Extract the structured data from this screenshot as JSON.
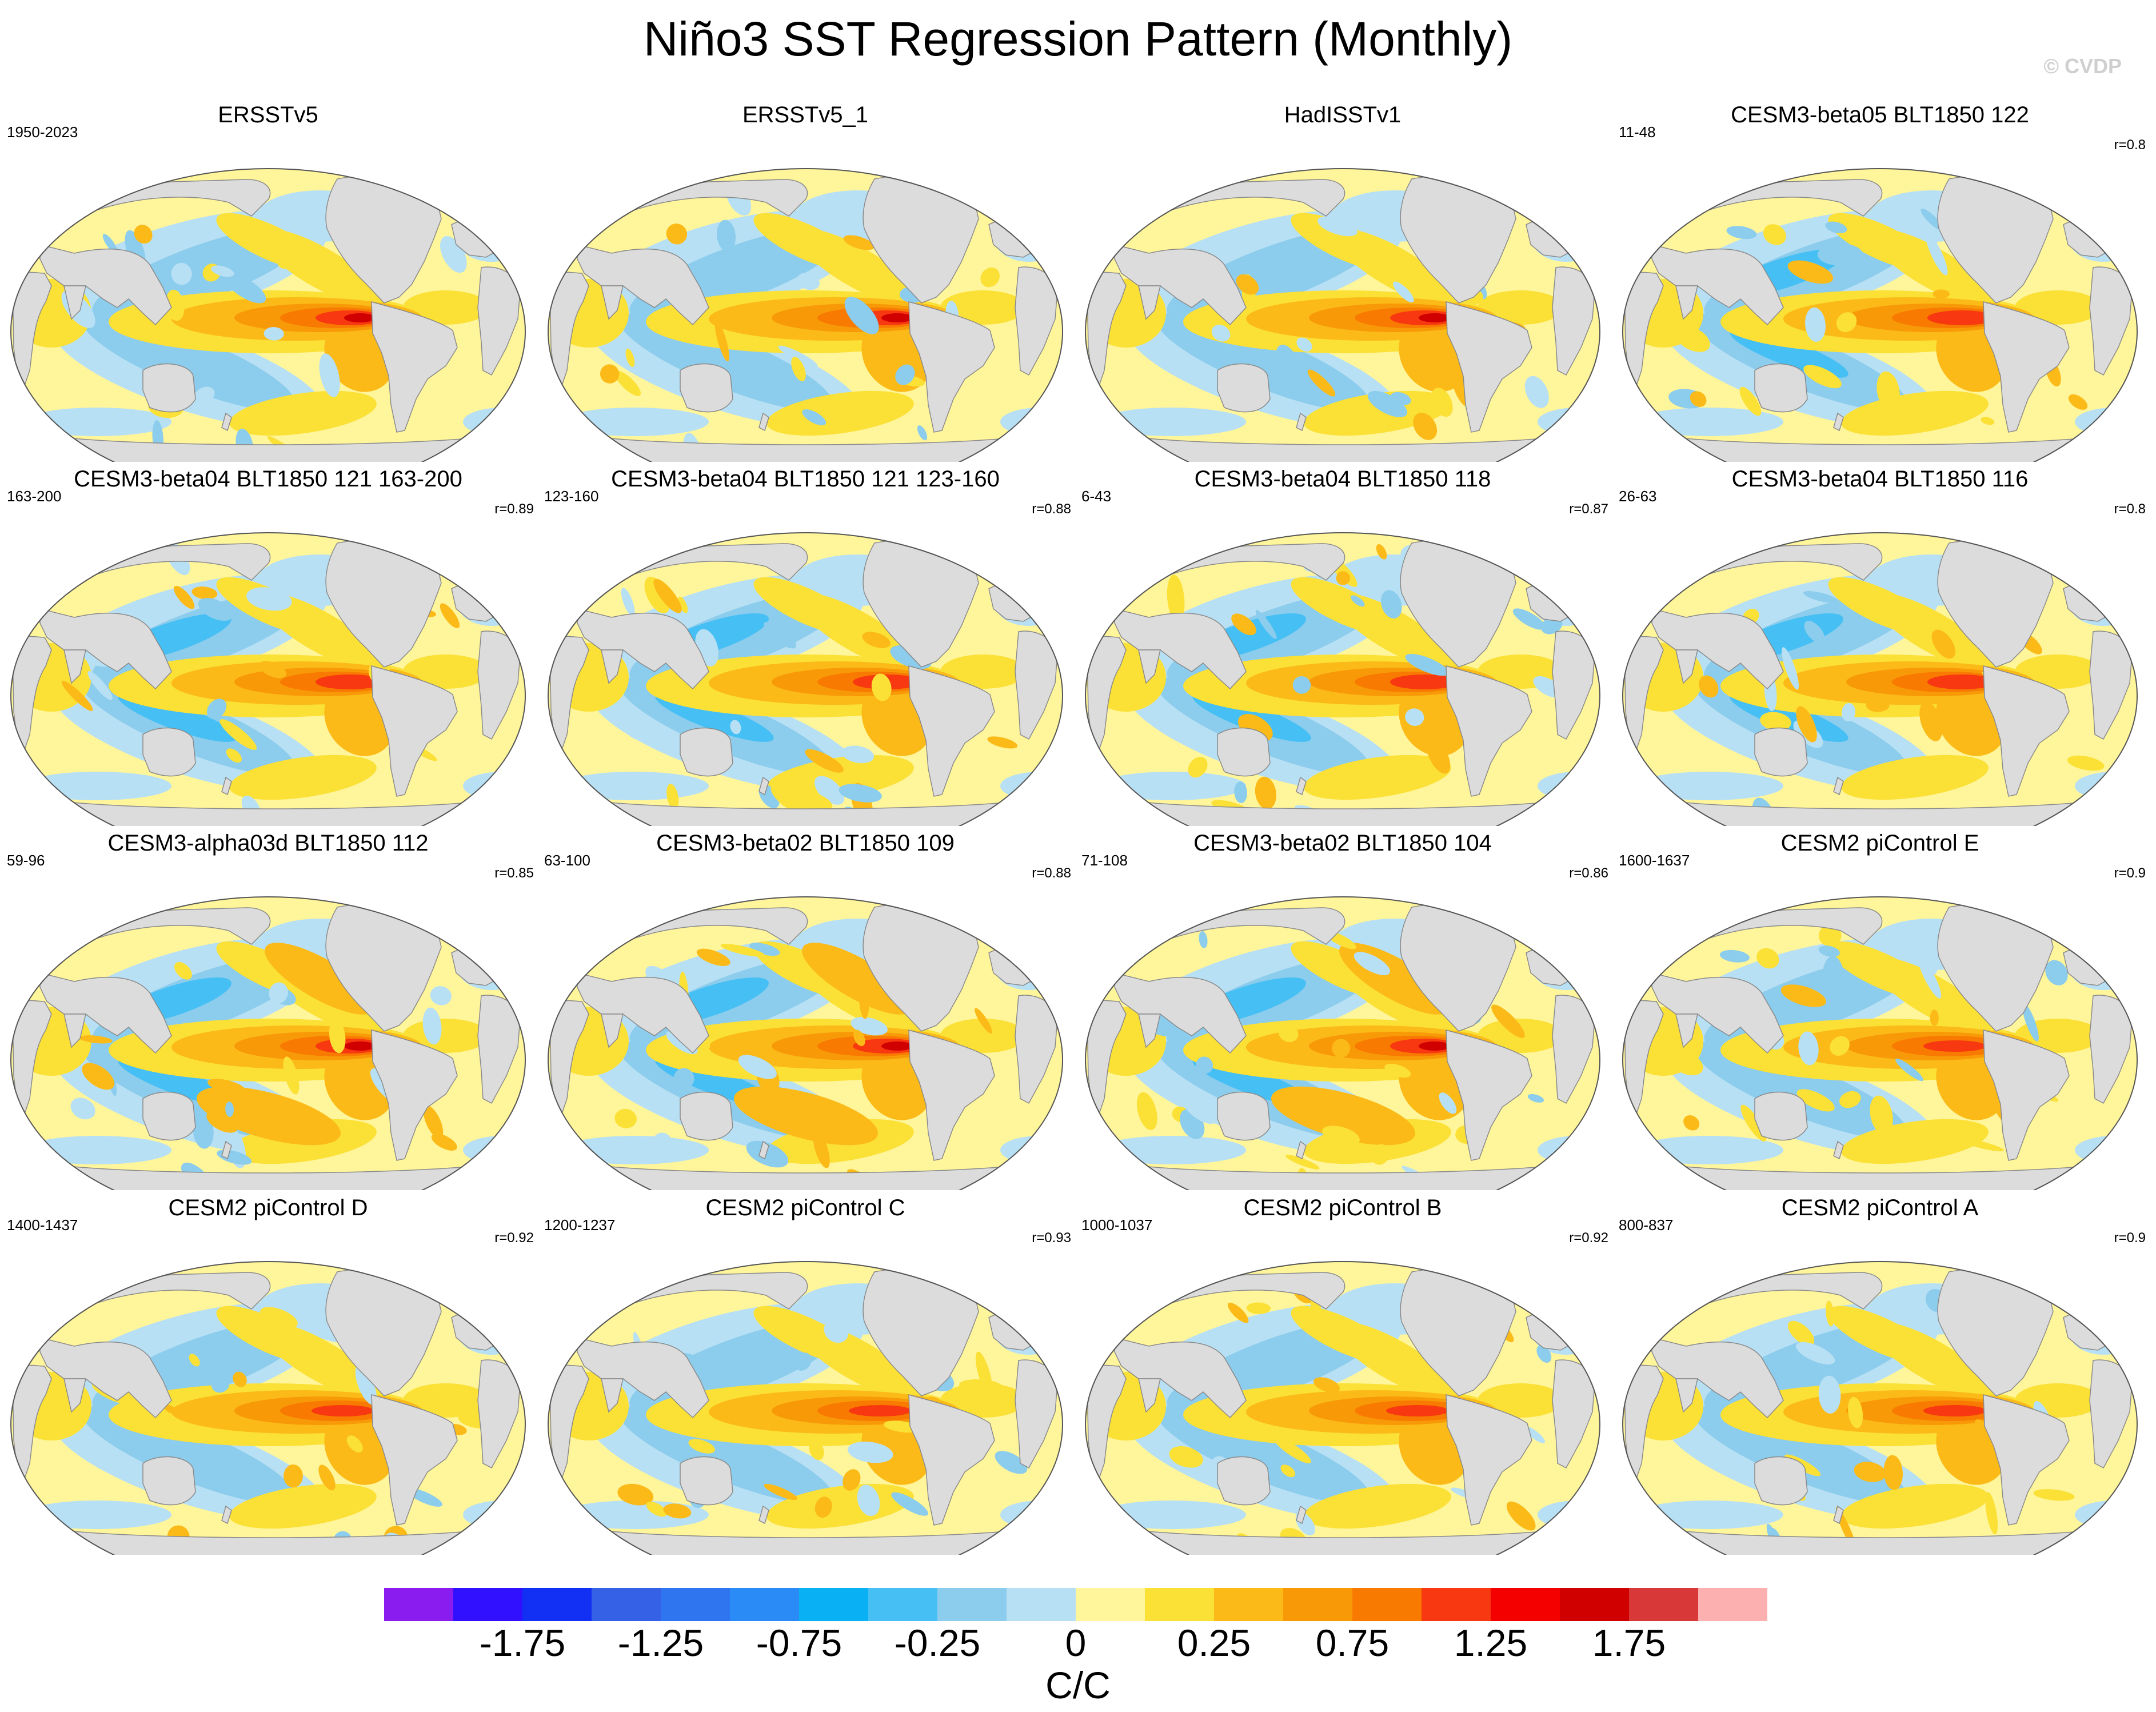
{
  "title": "Niño3 SST Regression Pattern (Monthly)",
  "watermark": "© CVDP",
  "colors": {
    "land": "#dcdcdc",
    "coast": "#8a8a8a",
    "contour_levels": [
      "#8a1cf0",
      "#3010ff",
      "#1230f4",
      "#3561e6",
      "#2f75f0",
      "#2a8bf6",
      "#0ab0f4",
      "#46c0f4",
      "#8cccec",
      "#b8e0f4",
      "#fff59a",
      "#fbe036",
      "#fbba18",
      "#f89a08",
      "#f87a00",
      "#f83810",
      "#f40000",
      "#d00000",
      "#d83838",
      "#fcb0b0"
    ]
  },
  "colorbar": {
    "labels": [
      "-1.75",
      "-1.25",
      "-0.75",
      "-0.25",
      "0",
      "0.25",
      "0.75",
      "1.25",
      "1.75"
    ],
    "units": "C/C"
  },
  "panels": [
    {
      "title": "ERSSTv5",
      "years": "1950-2023",
      "corr": "",
      "pattern": "obs"
    },
    {
      "title": "ERSSTv5_1",
      "years": "",
      "corr": "",
      "pattern": "obs"
    },
    {
      "title": "HadISSTv1",
      "years": "",
      "corr": "",
      "pattern": "obs"
    },
    {
      "title": "CESM3-beta05 BLT1850 122",
      "years": "11-48",
      "corr": "r=0.8",
      "pattern": "beta"
    },
    {
      "title": "CESM3-beta04 BLT1850 121 163-200",
      "years": "163-200",
      "corr": "r=0.89",
      "pattern": "beta"
    },
    {
      "title": "CESM3-beta04 BLT1850 121 123-160",
      "years": "123-160",
      "corr": "r=0.88",
      "pattern": "beta"
    },
    {
      "title": "CESM3-beta04 BLT1850 118",
      "years": "6-43",
      "corr": "r=0.87",
      "pattern": "beta"
    },
    {
      "title": "CESM3-beta04 BLT1850 116",
      "years": "26-63",
      "corr": "r=0.8",
      "pattern": "beta"
    },
    {
      "title": "CESM3-alpha03d BLT1850 112",
      "years": "59-96",
      "corr": "r=0.85",
      "pattern": "strong"
    },
    {
      "title": "CESM3-beta02 BLT1850 109",
      "years": "63-100",
      "corr": "r=0.88",
      "pattern": "strong"
    },
    {
      "title": "CESM3-beta02 BLT1850 104",
      "years": "71-108",
      "corr": "r=0.86",
      "pattern": "strong"
    },
    {
      "title": "CESM2 piControl E",
      "years": "1600-1637",
      "corr": "r=0.9",
      "pattern": "cesm2"
    },
    {
      "title": "CESM2 piControl D",
      "years": "1400-1437",
      "corr": "r=0.92",
      "pattern": "cesm2"
    },
    {
      "title": "CESM2 piControl C",
      "years": "1200-1237",
      "corr": "r=0.93",
      "pattern": "cesm2"
    },
    {
      "title": "CESM2 piControl B",
      "years": "1000-1037",
      "corr": "r=0.92",
      "pattern": "cesm2"
    },
    {
      "title": "CESM2 piControl A",
      "years": "800-837",
      "corr": "r=0.9",
      "pattern": "cesm2"
    }
  ]
}
